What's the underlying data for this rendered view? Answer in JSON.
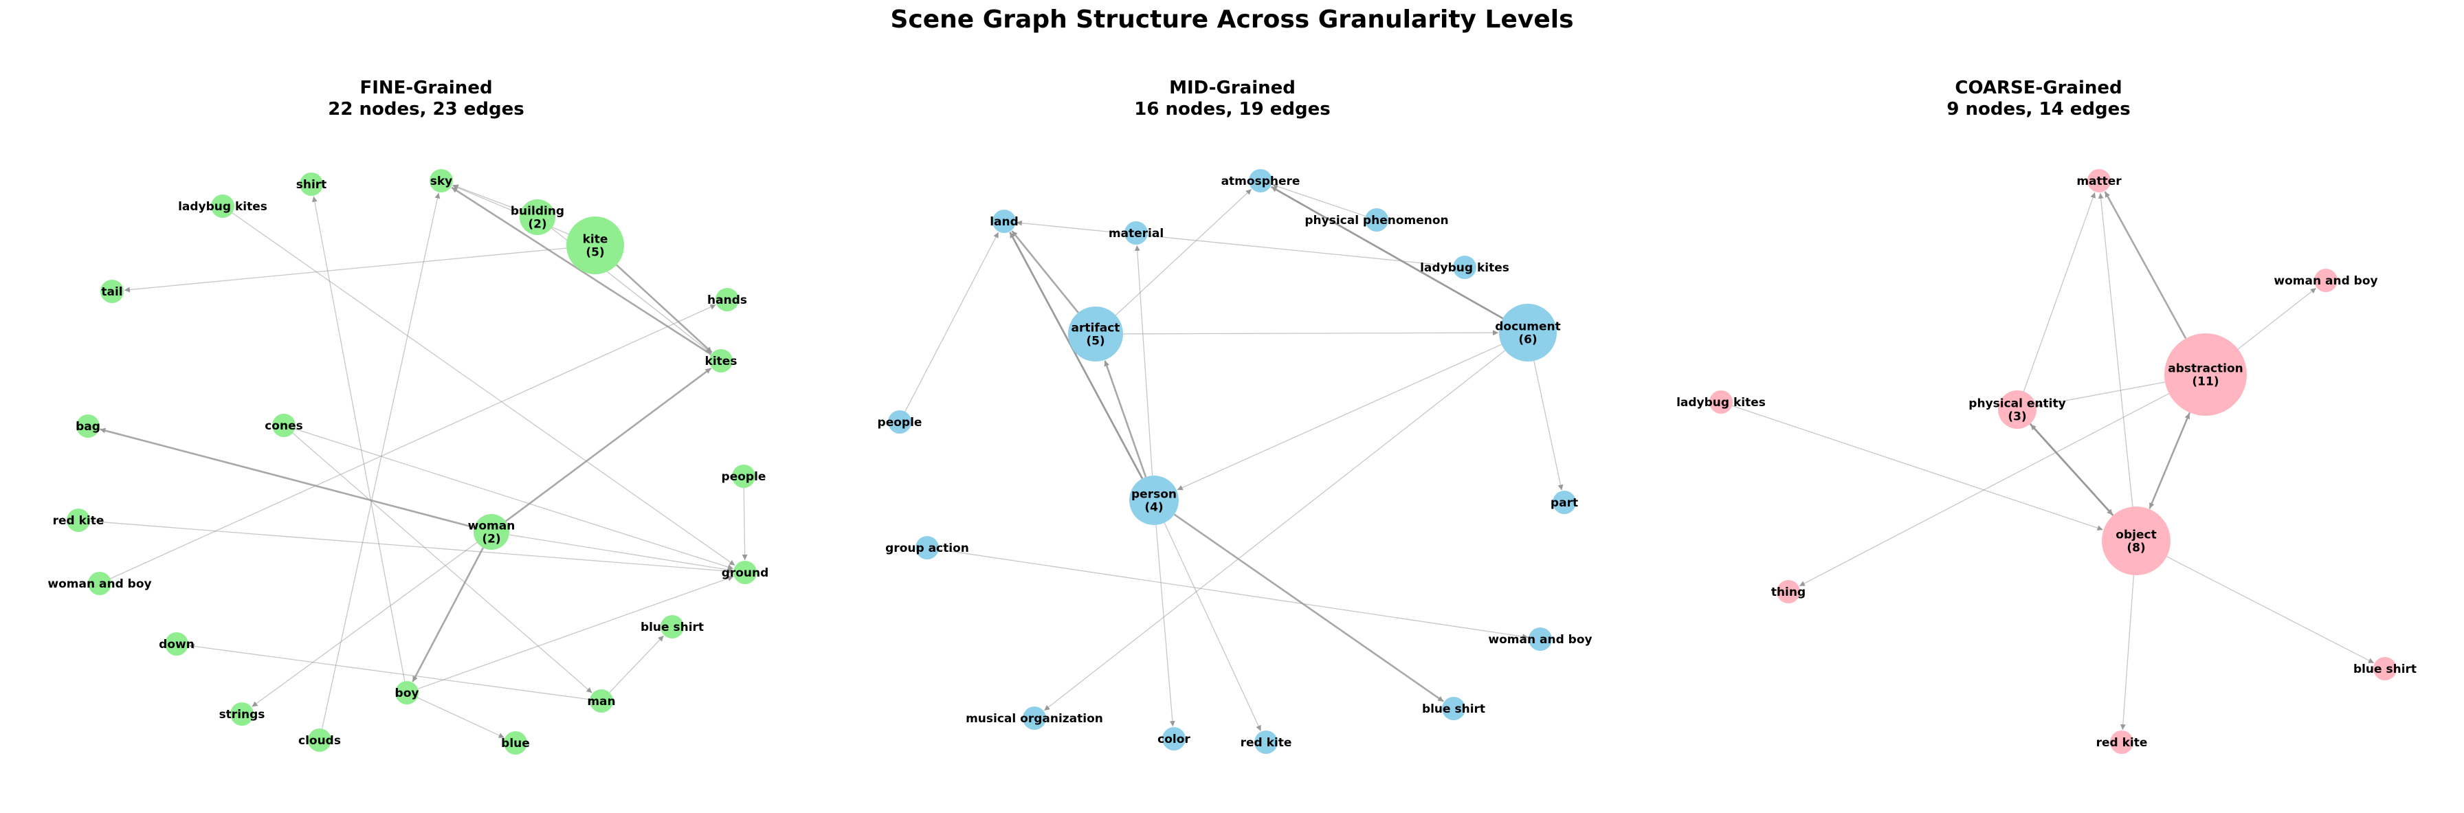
{
  "title": "Scene Graph Structure Across Granularity Levels",
  "panels": [
    {
      "key": "fine",
      "title": "FINE-Grained",
      "subtitle": "22 nodes, 23 edges",
      "color": "#90EE90",
      "nodes": [
        {
          "id": "sky",
          "label": "sky"
        },
        {
          "id": "shirt",
          "label": "shirt"
        },
        {
          "id": "ladybug_kites",
          "label": "ladybug kites"
        },
        {
          "id": "building",
          "label": "building\n(2)"
        },
        {
          "id": "kite",
          "label": "kite\n(5)"
        },
        {
          "id": "tail",
          "label": "tail"
        },
        {
          "id": "hands",
          "label": "hands"
        },
        {
          "id": "kites",
          "label": "kites"
        },
        {
          "id": "bag",
          "label": "bag"
        },
        {
          "id": "cones",
          "label": "cones"
        },
        {
          "id": "people",
          "label": "people"
        },
        {
          "id": "red_kite",
          "label": "red kite"
        },
        {
          "id": "woman",
          "label": "woman\n(2)"
        },
        {
          "id": "ground",
          "label": "ground"
        },
        {
          "id": "woman_and_boy",
          "label": "woman and boy"
        },
        {
          "id": "blue_shirt",
          "label": "blue shirt"
        },
        {
          "id": "down",
          "label": "down"
        },
        {
          "id": "boy",
          "label": "boy"
        },
        {
          "id": "man",
          "label": "man"
        },
        {
          "id": "strings",
          "label": "strings"
        },
        {
          "id": "clouds",
          "label": "clouds"
        },
        {
          "id": "blue",
          "label": "blue"
        }
      ],
      "edges": [
        {
          "from": "kite",
          "to": "sky"
        },
        {
          "from": "building",
          "to": "sky"
        },
        {
          "from": "kite",
          "to": "kites"
        },
        {
          "from": "building",
          "to": "kites"
        },
        {
          "from": "kites",
          "to": "sky"
        },
        {
          "from": "kite",
          "to": "tail"
        },
        {
          "from": "woman",
          "to": "kites"
        },
        {
          "from": "woman",
          "to": "boy"
        },
        {
          "from": "woman",
          "to": "bag"
        },
        {
          "from": "woman",
          "to": "ground"
        },
        {
          "from": "woman",
          "to": "strings"
        },
        {
          "from": "cones",
          "to": "ground"
        },
        {
          "from": "cones",
          "to": "man"
        },
        {
          "from": "people",
          "to": "ground"
        },
        {
          "from": "red_kite",
          "to": "ground"
        },
        {
          "from": "woman_and_boy",
          "to": "hands"
        },
        {
          "from": "ladybug_kites",
          "to": "ground"
        },
        {
          "from": "boy",
          "to": "shirt"
        },
        {
          "from": "boy",
          "to": "blue"
        },
        {
          "from": "man",
          "to": "down"
        },
        {
          "from": "man",
          "to": "blue_shirt"
        },
        {
          "from": "clouds",
          "to": "sky"
        },
        {
          "from": "boy",
          "to": "ground"
        }
      ]
    },
    {
      "key": "mid",
      "title": "MID-Grained",
      "subtitle": "16 nodes, 19 edges",
      "color": "#8ECFEA",
      "nodes": [
        {
          "id": "atmosphere",
          "label": "atmosphere"
        },
        {
          "id": "land",
          "label": "land"
        },
        {
          "id": "material",
          "label": "material"
        },
        {
          "id": "physical_phenomenon",
          "label": "physical phenomenon"
        },
        {
          "id": "ladybug_kites",
          "label": "ladybug kites"
        },
        {
          "id": "artifact",
          "label": "artifact\n(5)"
        },
        {
          "id": "document",
          "label": "document\n(6)"
        },
        {
          "id": "people",
          "label": "people"
        },
        {
          "id": "person",
          "label": "person\n(4)"
        },
        {
          "id": "part",
          "label": "part"
        },
        {
          "id": "group_action",
          "label": "group action"
        },
        {
          "id": "woman_and_boy",
          "label": "woman and boy"
        },
        {
          "id": "blue_shirt",
          "label": "blue shirt"
        },
        {
          "id": "musical_organization",
          "label": "musical organization"
        },
        {
          "id": "color",
          "label": "color"
        },
        {
          "id": "red_kite",
          "label": "red kite"
        }
      ],
      "edges": [
        {
          "from": "document",
          "to": "atmosphere"
        },
        {
          "from": "physical_phenomenon",
          "to": "atmosphere"
        },
        {
          "from": "artifact",
          "to": "atmosphere"
        },
        {
          "from": "ladybug_kites",
          "to": "land"
        },
        {
          "from": "artifact",
          "to": "land"
        },
        {
          "from": "person",
          "to": "land"
        },
        {
          "from": "people",
          "to": "land"
        },
        {
          "from": "person",
          "to": "material"
        },
        {
          "from": "artifact",
          "to": "document"
        },
        {
          "from": "document",
          "to": "part"
        },
        {
          "from": "document",
          "to": "person"
        },
        {
          "from": "document",
          "to": "musical_organization"
        },
        {
          "from": "person",
          "to": "artifact"
        },
        {
          "from": "person",
          "to": "blue_shirt"
        },
        {
          "from": "person",
          "to": "color"
        },
        {
          "from": "person",
          "to": "red_kite"
        },
        {
          "from": "group_action",
          "to": "woman_and_boy"
        },
        {
          "from": "document",
          "to": "atmosphere"
        },
        {
          "from": "person",
          "to": "land"
        }
      ]
    },
    {
      "key": "coarse",
      "title": "COARSE-Grained",
      "subtitle": "9 nodes, 14 edges",
      "color": "#FFB6C1",
      "nodes": [
        {
          "id": "matter",
          "label": "matter"
        },
        {
          "id": "woman_and_boy",
          "label": "woman and boy"
        },
        {
          "id": "abstraction",
          "label": "abstraction\n(11)"
        },
        {
          "id": "ladybug_kites",
          "label": "ladybug kites"
        },
        {
          "id": "physical_entity",
          "label": "physical entity\n(3)"
        },
        {
          "id": "object",
          "label": "object\n(8)"
        },
        {
          "id": "thing",
          "label": "thing"
        },
        {
          "id": "blue_shirt",
          "label": "blue shirt"
        },
        {
          "id": "red_kite",
          "label": "red kite"
        }
      ],
      "edges": [
        {
          "from": "abstraction",
          "to": "matter"
        },
        {
          "from": "physical_entity",
          "to": "matter"
        },
        {
          "from": "object",
          "to": "matter"
        },
        {
          "from": "abstraction",
          "to": "woman_and_boy"
        },
        {
          "from": "abstraction",
          "to": "physical_entity"
        },
        {
          "from": "abstraction",
          "to": "object"
        },
        {
          "from": "abstraction",
          "to": "thing"
        },
        {
          "from": "physical_entity",
          "to": "object"
        },
        {
          "from": "object",
          "to": "physical_entity"
        },
        {
          "from": "ladybug_kites",
          "to": "object"
        },
        {
          "from": "object",
          "to": "blue_shirt"
        },
        {
          "from": "object",
          "to": "red_kite"
        },
        {
          "from": "object",
          "to": "abstraction"
        },
        {
          "from": "physical_entity",
          "to": "object"
        }
      ]
    }
  ]
}
